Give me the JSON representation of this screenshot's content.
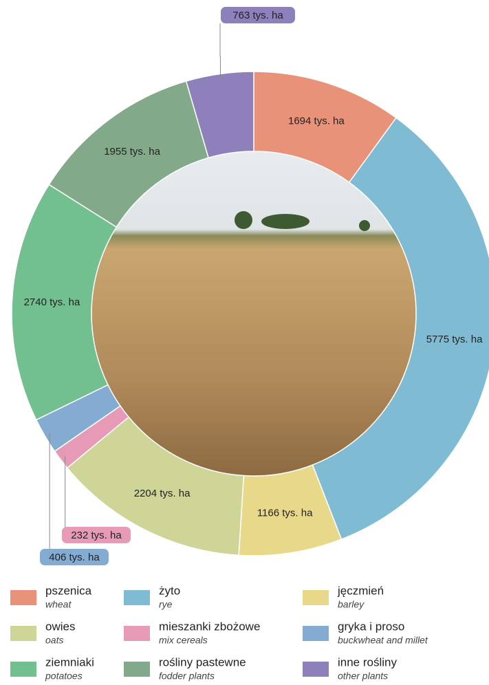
{
  "chart_data": {
    "type": "donut",
    "categories": [
      "pszenica",
      "żyto",
      "jęczmień",
      "owies",
      "mieszanki zbożowe",
      "gryka i proso",
      "ziemniaki",
      "rośliny pastewne",
      "inne rośliny"
    ],
    "categories_en": [
      "wheat",
      "rye",
      "barley",
      "oats",
      "mix cereals",
      "buckwheat and millet",
      "potatoes",
      "fodder plants",
      "other plants"
    ],
    "values": [
      1694,
      5775,
      1166,
      2204,
      232,
      406,
      2740,
      1955,
      763
    ],
    "value_labels": [
      "1694 tys. ha",
      "5775 tys. ha",
      "1166 tys. ha",
      "2204 tys. ha",
      "232 tys. ha",
      "406 tys. ha",
      "2740 tys. ha",
      "1955 tys. ha",
      "763 tys. ha"
    ],
    "colors": [
      "#e8927a",
      "#7fbcd3",
      "#e8d88a",
      "#cfd497",
      "#e79ab5",
      "#84abd2",
      "#72bf8f",
      "#82a98a",
      "#8e80bb"
    ]
  }
}
